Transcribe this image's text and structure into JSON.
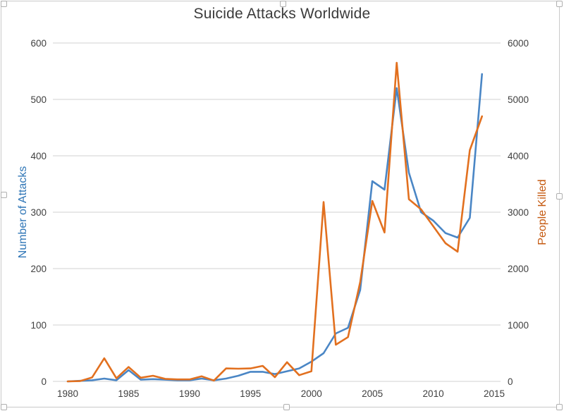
{
  "chart_data": {
    "type": "line",
    "title": "Suicide Attacks Worldwide",
    "x": [
      1980,
      1981,
      1982,
      1983,
      1984,
      1985,
      1986,
      1987,
      1988,
      1989,
      1990,
      1991,
      1992,
      1993,
      1994,
      1995,
      1996,
      1997,
      1998,
      1999,
      2000,
      2001,
      2002,
      2003,
      2004,
      2005,
      2006,
      2007,
      2008,
      2009,
      2010,
      2011,
      2012,
      2013,
      2014
    ],
    "series": [
      {
        "name": "Number of Attacks",
        "axis": "left",
        "color": "#4a86c5",
        "values": [
          0,
          1,
          2,
          5,
          2,
          20,
          3,
          4,
          3,
          2,
          2,
          5,
          2,
          5,
          10,
          17,
          17,
          13,
          18,
          23,
          35,
          50,
          85,
          95,
          162,
          355,
          340,
          520,
          370,
          300,
          285,
          263,
          255,
          290,
          545
        ]
      },
      {
        "name": "People Killed",
        "axis": "right",
        "color": "#e2701f",
        "values": [
          0,
          5,
          70,
          410,
          55,
          255,
          65,
          100,
          45,
          35,
          35,
          90,
          15,
          230,
          225,
          230,
          275,
          75,
          340,
          110,
          180,
          3180,
          650,
          785,
          1760,
          3200,
          2640,
          5650,
          3230,
          3050,
          2750,
          2450,
          2300,
          4100,
          4700
        ]
      }
    ],
    "x_ticks": [
      1980,
      1985,
      1990,
      1995,
      2000,
      2005,
      2010,
      2015
    ],
    "y_left": {
      "label": "Number of Attacks",
      "ticks": [
        0,
        100,
        200,
        300,
        400,
        500,
        600
      ],
      "range": [
        0,
        600
      ],
      "label_color": "#2e75b6"
    },
    "y_right": {
      "label": "People Killed",
      "ticks": [
        0,
        1000,
        2000,
        3000,
        4000,
        5000,
        6000
      ],
      "range": [
        0,
        6000
      ],
      "label_color": "#c55a11"
    },
    "grid": true,
    "legend": "none",
    "colors": {
      "grid": "#d9d9d9",
      "tick_text": "#404040",
      "title_text": "#3b3b3b"
    }
  },
  "selection_handles": [
    "nw",
    "n",
    "ne",
    "w",
    "e",
    "sw",
    "s",
    "se"
  ]
}
